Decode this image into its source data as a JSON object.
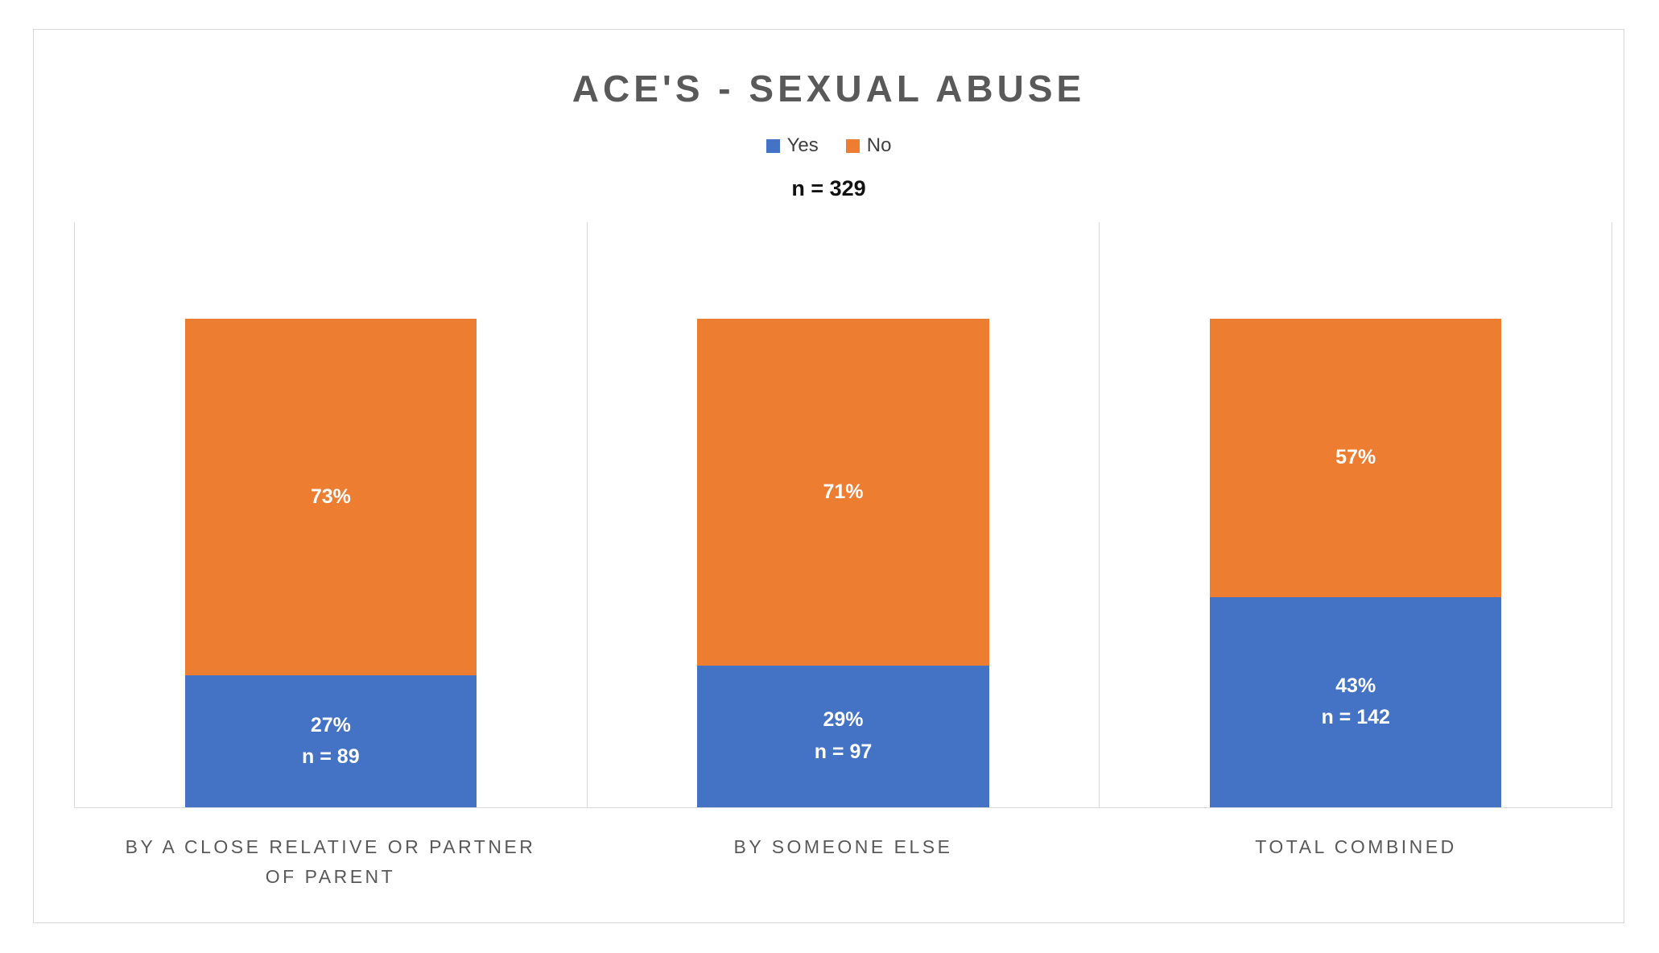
{
  "chart_data": {
    "type": "bar",
    "stacked": true,
    "title": "ACE'S - SEXUAL ABUSE",
    "subtitle": "n = 329",
    "grid": "vertical-separators",
    "legend_position": "top-center",
    "legend": [
      {
        "name": "Yes",
        "color": "#4472C4"
      },
      {
        "name": "No",
        "color": "#ED7D31"
      }
    ],
    "categories": [
      "BY A CLOSE RELATIVE OR PARTNER OF PARENT",
      "BY SOMEONE ELSE",
      "TOTAL COMBINED"
    ],
    "series": [
      {
        "name": "Yes",
        "color": "#4472C4",
        "values": [
          27,
          29,
          43
        ],
        "counts": [
          89,
          97,
          142
        ]
      },
      {
        "name": "No",
        "color": "#ED7D31",
        "values": [
          73,
          71,
          57
        ]
      }
    ],
    "ylim": [
      0,
      100
    ],
    "bars": [
      {
        "label": "BY A CLOSE RELATIVE OR PARTNER OF PARENT",
        "yes_value": 27,
        "no_value": 73,
        "yes_pct": "27%",
        "yes_n": "n = 89",
        "no_pct": "73%"
      },
      {
        "label": "BY SOMEONE ELSE",
        "yes_value": 29,
        "no_value": 71,
        "yes_pct": "29%",
        "yes_n": "n = 97",
        "no_pct": "71%"
      },
      {
        "label": "TOTAL COMBINED",
        "yes_value": 43,
        "no_value": 57,
        "yes_pct": "43%",
        "yes_n": "n = 142",
        "no_pct": "57%"
      }
    ],
    "colors": {
      "yes": "#4472C4",
      "no": "#ED7D31"
    }
  }
}
